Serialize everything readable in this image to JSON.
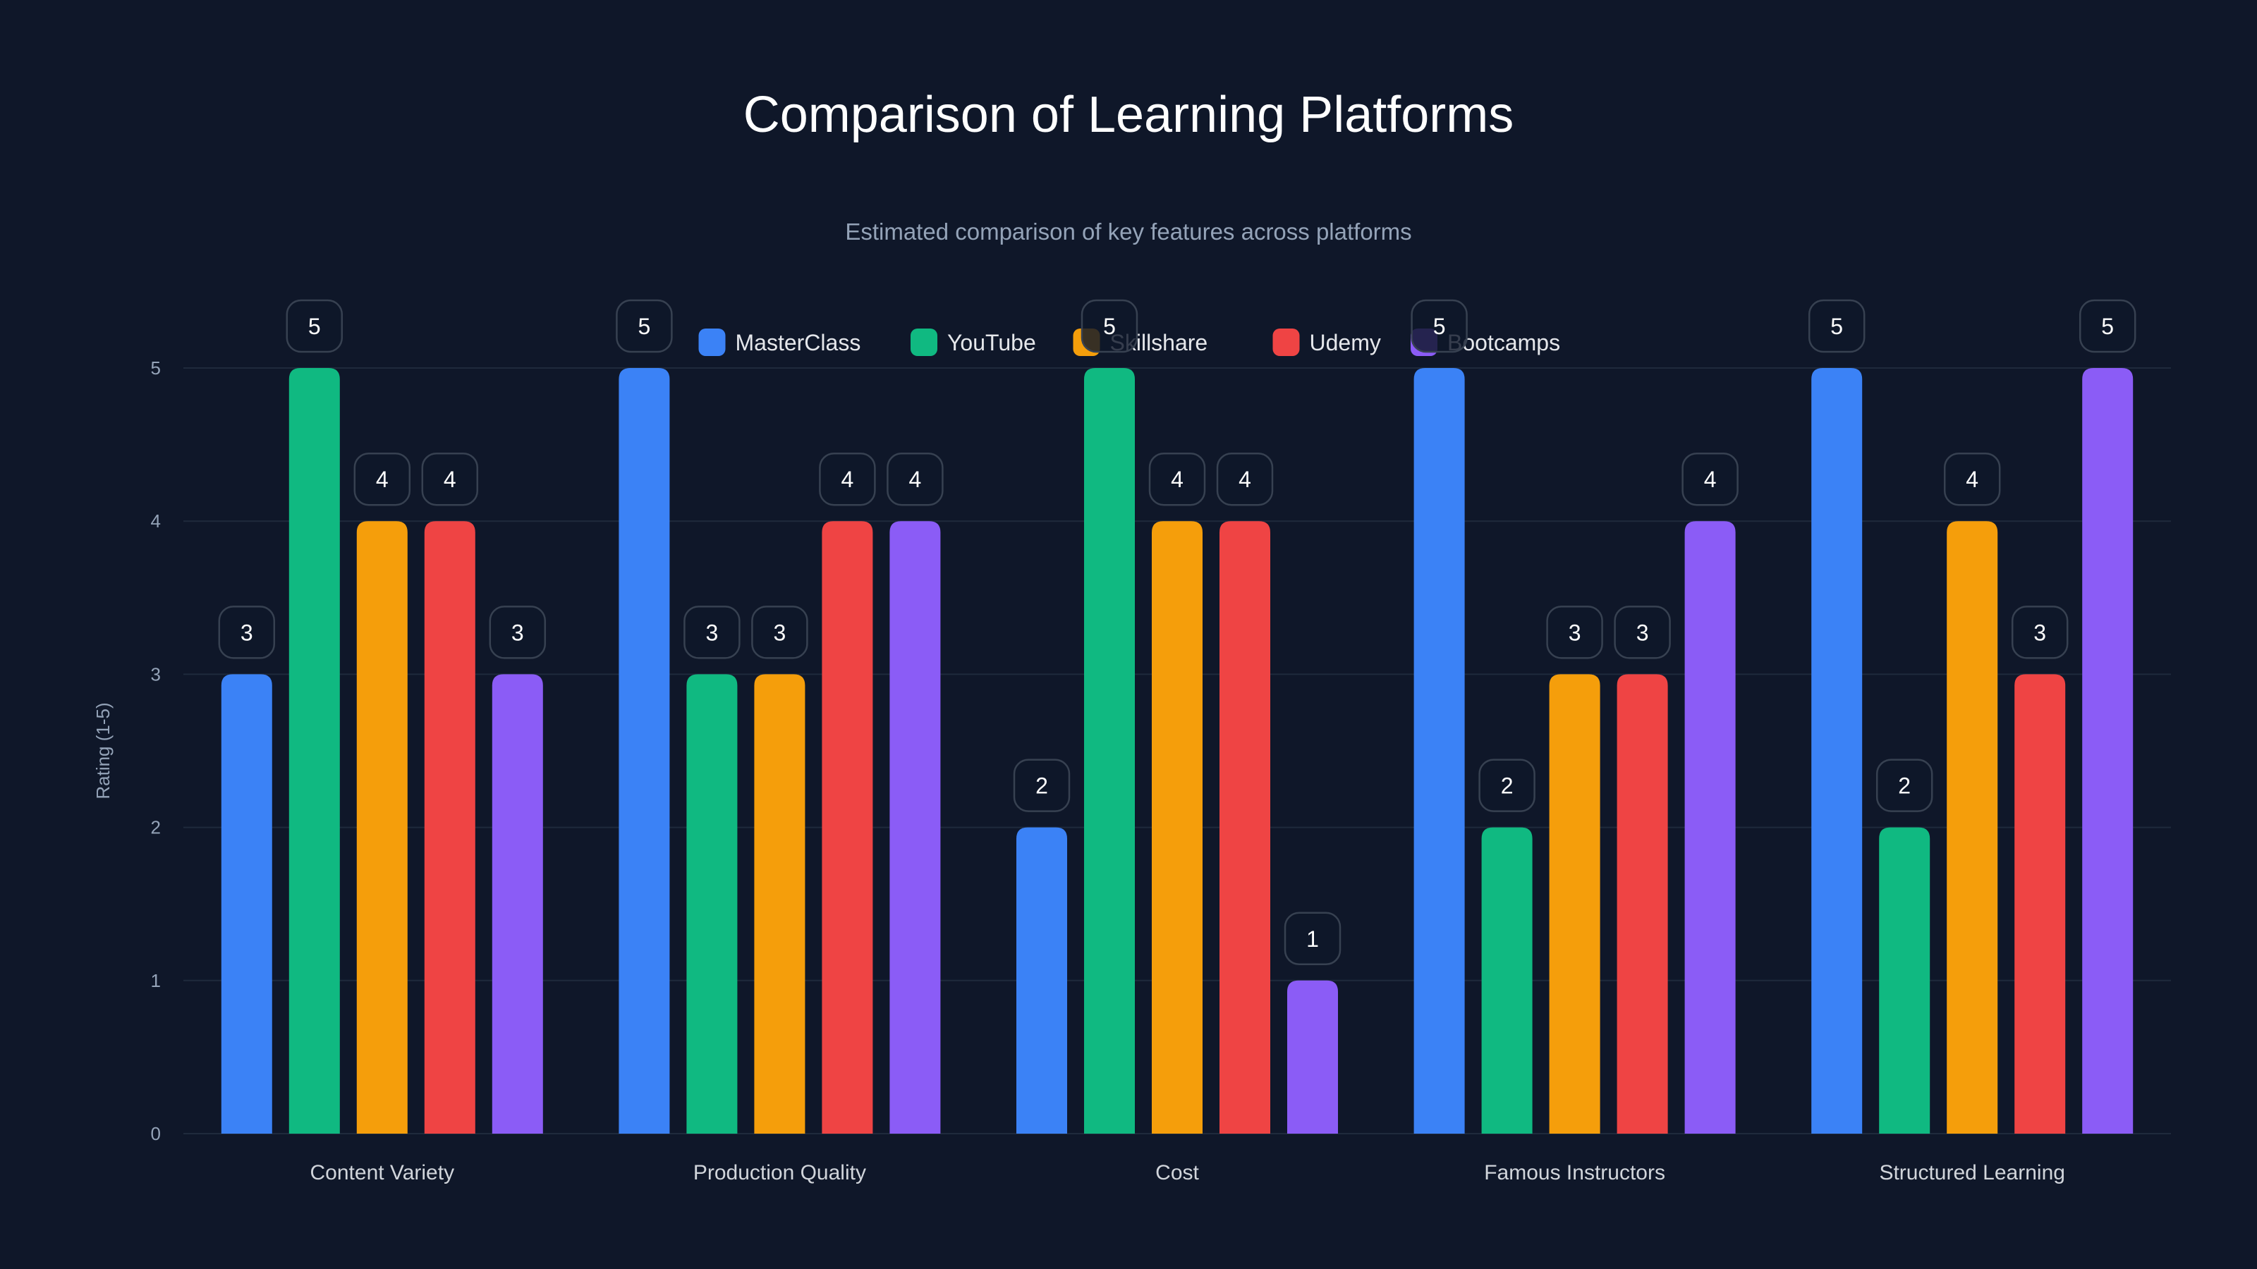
{
  "chart_data": {
    "type": "bar",
    "title": "Comparison of Learning Platforms",
    "subtitle": "Estimated comparison of key features across platforms",
    "xlabel": "",
    "ylabel": "Rating (1-5)",
    "ylim": [
      0,
      5
    ],
    "yticks": [
      0,
      1,
      2,
      3,
      4,
      5
    ],
    "grid": true,
    "legend_position": "top-center",
    "categories": [
      "Content Variety",
      "Production Quality",
      "Cost",
      "Famous Instructors",
      "Structured Learning"
    ],
    "series": [
      {
        "name": "MasterClass",
        "color": "#3b82f6",
        "values": [
          3,
          5,
          2,
          5,
          5
        ]
      },
      {
        "name": "YouTube",
        "color": "#10b981",
        "values": [
          5,
          3,
          5,
          2,
          2
        ]
      },
      {
        "name": "Skillshare",
        "color": "#f59e0b",
        "values": [
          4,
          3,
          4,
          3,
          4
        ]
      },
      {
        "name": "Udemy",
        "color": "#ef4444",
        "values": [
          4,
          4,
          4,
          3,
          3
        ]
      },
      {
        "name": "Bootcamps",
        "color": "#8b5cf6",
        "values": [
          3,
          4,
          1,
          4,
          5
        ]
      }
    ]
  }
}
